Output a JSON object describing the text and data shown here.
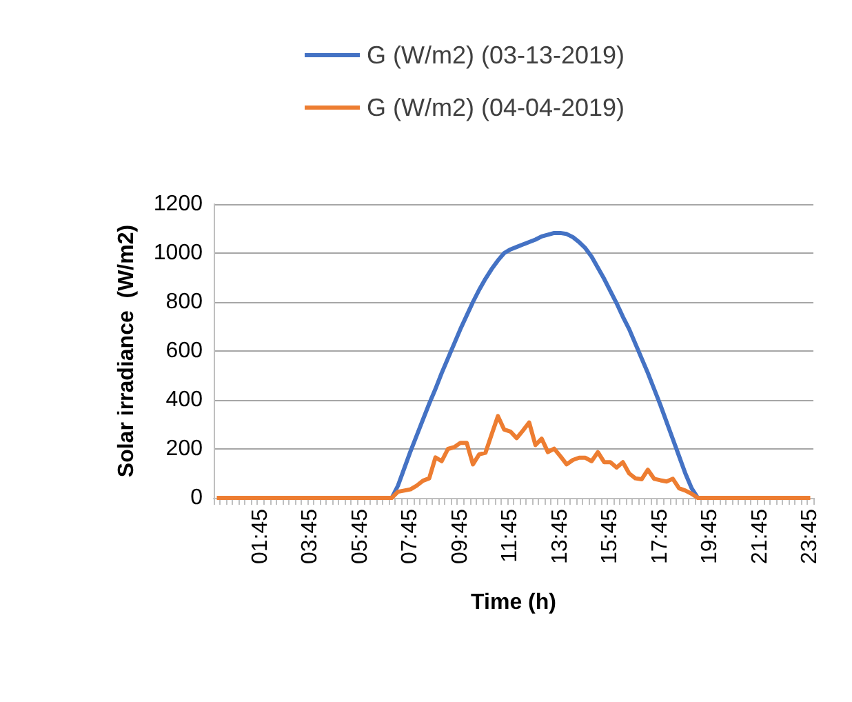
{
  "chart_data": {
    "type": "line",
    "xlabel": "Time (h)",
    "ylabel": "Solar irradiance  (W/m2)",
    "categories": [
      null,
      null,
      null,
      null,
      null,
      null,
      null,
      "01:45",
      null,
      null,
      null,
      null,
      null,
      null,
      null,
      "03:45",
      null,
      null,
      null,
      null,
      null,
      null,
      null,
      "05:45",
      null,
      null,
      null,
      null,
      null,
      null,
      null,
      "07:45",
      null,
      null,
      null,
      null,
      null,
      null,
      null,
      "09:45",
      null,
      null,
      null,
      null,
      null,
      null,
      null,
      "11:45",
      null,
      null,
      null,
      null,
      null,
      null,
      null,
      "13:45",
      null,
      null,
      null,
      null,
      null,
      null,
      null,
      "15:45",
      null,
      null,
      null,
      null,
      null,
      null,
      null,
      "17:45",
      null,
      null,
      null,
      null,
      null,
      null,
      null,
      "19:45",
      null,
      null,
      null,
      null,
      null,
      null,
      null,
      "21:45",
      null,
      null,
      null,
      null,
      null,
      null,
      null,
      "23:45"
    ],
    "series": [
      {
        "name": "G (W/m2) (03-13-2019)",
        "color": "#4472c4",
        "values": [
          null,
          null,
          null,
          null,
          null,
          null,
          null,
          null,
          null,
          null,
          null,
          null,
          null,
          null,
          null,
          null,
          null,
          null,
          null,
          null,
          null,
          null,
          null,
          null,
          null,
          null,
          null,
          null,
          0,
          50,
          120,
          190,
          255,
          320,
          385,
          445,
          510,
          570,
          630,
          690,
          745,
          800,
          850,
          895,
          935,
          970,
          1000,
          1015,
          1025,
          1035,
          1045,
          1055,
          1068,
          1075,
          1082,
          1082,
          1078,
          1065,
          1045,
          1020,
          985,
          940,
          895,
          845,
          795,
          740,
          690,
          630,
          570,
          510,
          445,
          380,
          310,
          240,
          170,
          100,
          40,
          0,
          null,
          null,
          null,
          null,
          null,
          null,
          null,
          null,
          null,
          null,
          null,
          null,
          null,
          null,
          null,
          null,
          null,
          null
        ]
      },
      {
        "name": "G (W/m2) (04-04-2019)",
        "color": "#ed7d31",
        "values": [
          0,
          0,
          0,
          0,
          0,
          0,
          0,
          0,
          0,
          0,
          0,
          0,
          0,
          0,
          0,
          0,
          0,
          0,
          0,
          0,
          0,
          0,
          0,
          0,
          0,
          0,
          0,
          0,
          0,
          25,
          30,
          35,
          50,
          70,
          80,
          165,
          150,
          200,
          207,
          225,
          225,
          137,
          178,
          184,
          260,
          334,
          279,
          271,
          244,
          275,
          308,
          216,
          242,
          187,
          201,
          170,
          137,
          155,
          164,
          164,
          150,
          187,
          146,
          146,
          124,
          146,
          100,
          80,
          76,
          115,
          78,
          72,
          67,
          78,
          39,
          30,
          17,
          0,
          0,
          0,
          0,
          0,
          0,
          0,
          0,
          0,
          0,
          0,
          0,
          0,
          0,
          0,
          0,
          0,
          0,
          0
        ]
      }
    ],
    "ylim": [
      0,
      1200
    ],
    "yticks": [
      0,
      200,
      400,
      600,
      800,
      1000,
      1200
    ],
    "grid": "y",
    "legend": "top",
    "marker": "none",
    "line_style": "solid"
  }
}
